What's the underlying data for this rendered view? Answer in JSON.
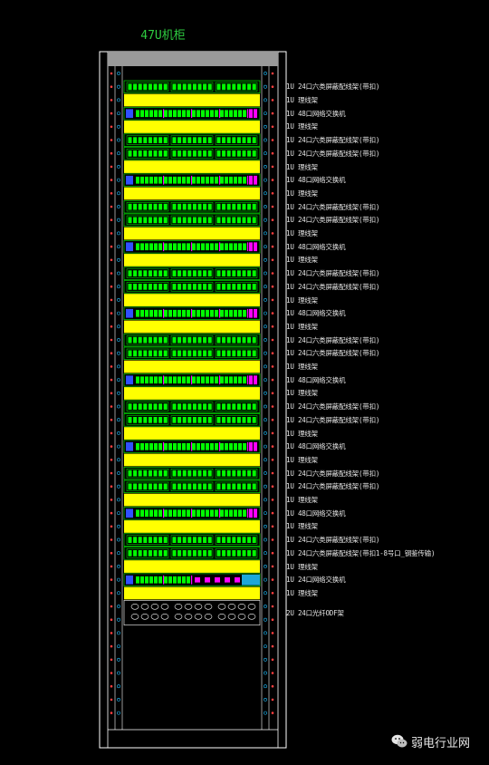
{
  "title": "47U机柜",
  "units": [
    {
      "label": "1U 24口六类屏蔽配线架(带扣)",
      "type": "patch"
    },
    {
      "label": "1U 理线架",
      "type": "manager"
    },
    {
      "label": "1U 48口网络交换机",
      "type": "switch48"
    },
    {
      "label": "1U 理线架",
      "type": "manager"
    },
    {
      "label": "1U 24口六类屏蔽配线架(带扣)",
      "type": "patch"
    },
    {
      "label": "1U 24口六类屏蔽配线架(带扣)",
      "type": "patch"
    },
    {
      "label": "1U 理线架",
      "type": "manager"
    },
    {
      "label": "1U 48口网络交换机",
      "type": "switch48"
    },
    {
      "label": "1U 理线架",
      "type": "manager"
    },
    {
      "label": "1U 24口六类屏蔽配线架(带扣)",
      "type": "patch"
    },
    {
      "label": "1U 24口六类屏蔽配线架(带扣)",
      "type": "patch"
    },
    {
      "label": "1U 理线架",
      "type": "manager"
    },
    {
      "label": "1U 48口网络交换机",
      "type": "switch48"
    },
    {
      "label": "1U 理线架",
      "type": "manager"
    },
    {
      "label": "1U 24口六类屏蔽配线架(带扣)",
      "type": "patch"
    },
    {
      "label": "1U 24口六类屏蔽配线架(带扣)",
      "type": "patch"
    },
    {
      "label": "1U 理线架",
      "type": "manager"
    },
    {
      "label": "1U 48口网络交换机",
      "type": "switch48"
    },
    {
      "label": "1U 理线架",
      "type": "manager"
    },
    {
      "label": "1U 24口六类屏蔽配线架(带扣)",
      "type": "patch"
    },
    {
      "label": "1U 24口六类屏蔽配线架(带扣)",
      "type": "patch"
    },
    {
      "label": "1U 理线架",
      "type": "manager"
    },
    {
      "label": "1U 48口网络交换机",
      "type": "switch48"
    },
    {
      "label": "1U 理线架",
      "type": "manager"
    },
    {
      "label": "1U 24口六类屏蔽配线架(带扣)",
      "type": "patch"
    },
    {
      "label": "1U 24口六类屏蔽配线架(带扣)",
      "type": "patch"
    },
    {
      "label": "1U 理线架",
      "type": "manager"
    },
    {
      "label": "1U 48口网络交换机",
      "type": "switch48"
    },
    {
      "label": "1U 理线架",
      "type": "manager"
    },
    {
      "label": "1U 24口六类屏蔽配线架(带扣)",
      "type": "patch"
    },
    {
      "label": "1U 24口六类屏蔽配线架(带扣)",
      "type": "patch"
    },
    {
      "label": "1U 理线架",
      "type": "manager"
    },
    {
      "label": "1U 48口网络交换机",
      "type": "switch48"
    },
    {
      "label": "1U 理线架",
      "type": "manager"
    },
    {
      "label": "1U 24口六类屏蔽配线架(带扣)",
      "type": "patch"
    },
    {
      "label": "1U 24口六类屏蔽配线架(带扣1-8号口_钢鉴传输)",
      "type": "patch"
    },
    {
      "label": "1U 理线架",
      "type": "manager"
    },
    {
      "label": "1U 24口网络交换机",
      "type": "switch24"
    },
    {
      "label": "1U 理线架",
      "type": "manager"
    },
    {
      "label": "2U 24口光纤ODF架",
      "type": "odf"
    }
  ],
  "watermark": {
    "text": "弱电行业网"
  },
  "colors": {
    "patch": "#00ff00",
    "manager": "#ffff00",
    "switch_port": "#ff00ff",
    "switch_uplink": "#1ea7d8",
    "frame": "#ffffff",
    "top_cap": "#9a9a9a"
  }
}
